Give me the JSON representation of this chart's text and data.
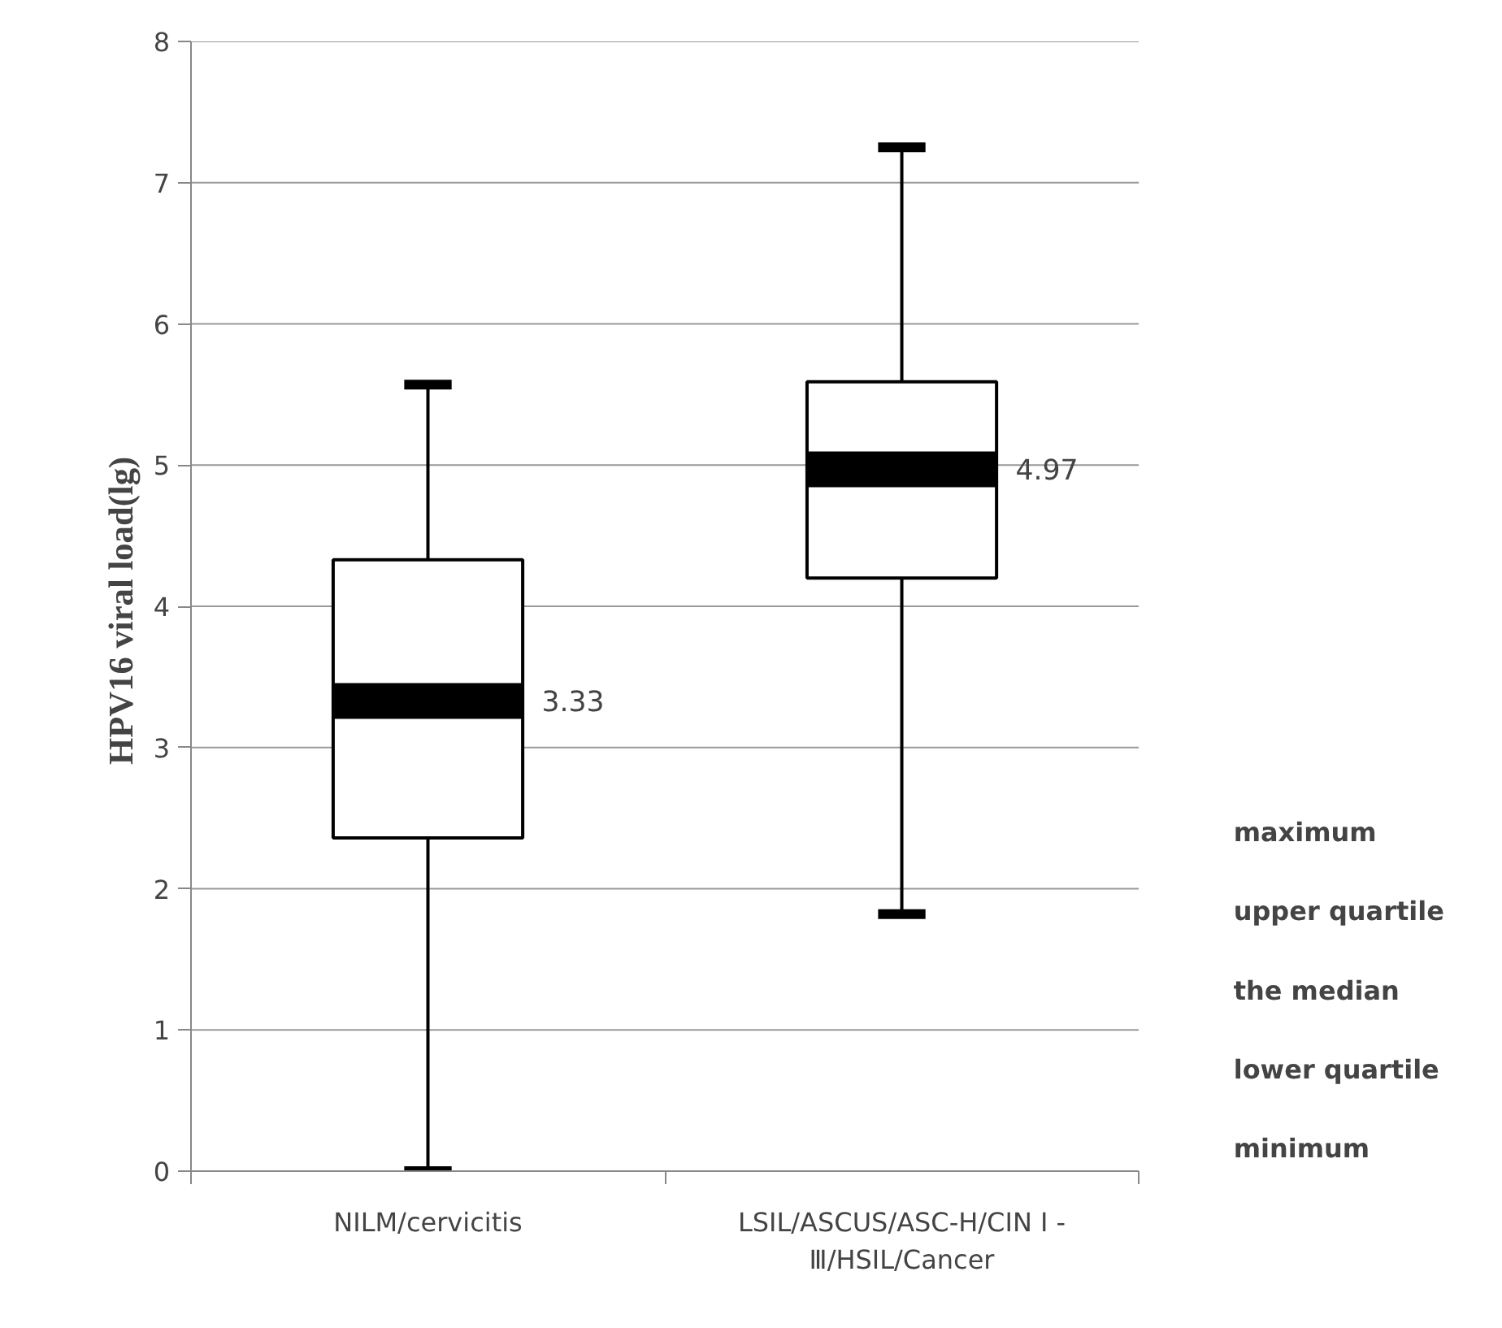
{
  "chart_data": {
    "type": "box",
    "ylabel": "HPV16  viral load(lg)",
    "categories": [
      "NILM/cervicitis",
      "LSIL/ASCUS/ASC-H/CIN Ⅰ -\nⅢ/HSIL/Cancer"
    ],
    "boxes": [
      {
        "low": 0,
        "q1": 2.36,
        "median": 3.33,
        "q3": 4.33,
        "high": 5.57
      },
      {
        "low": 1.82,
        "q1": 4.2,
        "median": 4.97,
        "q3": 5.59,
        "high": 7.25
      }
    ],
    "value_labels": [
      "3.33",
      "4.97"
    ],
    "ylim": [
      0,
      8
    ],
    "yticks": [
      0,
      1,
      2,
      3,
      4,
      5,
      6,
      7,
      8
    ],
    "grid": "y",
    "annotations": [
      "maximum",
      "upper quartile",
      "the median",
      "lower quartile",
      "minimum"
    ]
  }
}
